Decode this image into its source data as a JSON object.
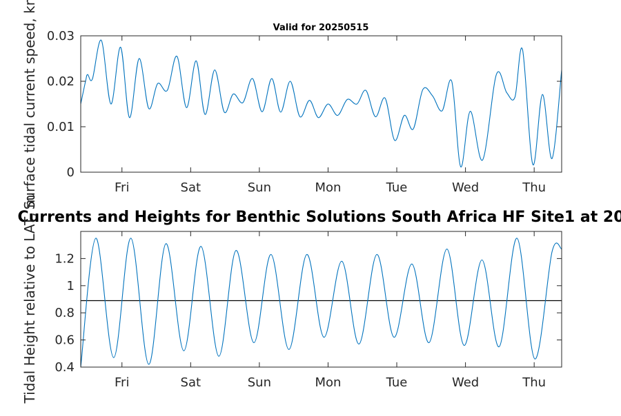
{
  "figure": {
    "top_title": "Valid for 20250515",
    "main_title": "Currents and Heights for Benthic Solutions South Africa HF Site1 at 20"
  },
  "chart_data": [
    {
      "type": "line",
      "ylabel": "Surface tidal current speed, kn",
      "ylim": [
        0,
        0.03
      ],
      "yticks": [
        0,
        0.01,
        0.02,
        0.03
      ],
      "ytick_labels": [
        "0",
        "0.01",
        "0.02",
        "0.03"
      ],
      "xlim": [
        0,
        7
      ],
      "xtick_positions": [
        0.6,
        1.6,
        2.6,
        3.6,
        4.6,
        5.6,
        6.6
      ],
      "xtick_labels": [
        "Fri",
        "Sat",
        "Sun",
        "Mon",
        "Tue",
        "Wed",
        "Thu"
      ],
      "grid": false,
      "series": [
        {
          "color": "#0072BD",
          "x": [
            0,
            0.07,
            0.1,
            0.17,
            0.3,
            0.44,
            0.58,
            0.71,
            0.85,
            0.99,
            1.12,
            1.26,
            1.4,
            1.54,
            1.68,
            1.81,
            1.95,
            2.09,
            2.22,
            2.36,
            2.5,
            2.64,
            2.78,
            2.91,
            3.05,
            3.19,
            3.33,
            3.46,
            3.6,
            3.74,
            3.88,
            4.02,
            4.15,
            4.29,
            4.43,
            4.57,
            4.71,
            4.84,
            4.98,
            5.12,
            5.26,
            5.4,
            5.53,
            5.67,
            5.85,
            6.05,
            6.2,
            6.32,
            6.43,
            6.58,
            6.72,
            6.86,
            7.0
          ],
          "y": [
            0.015,
            0.02,
            0.0215,
            0.0205,
            0.029,
            0.015,
            0.0275,
            0.012,
            0.025,
            0.014,
            0.0195,
            0.018,
            0.0255,
            0.0142,
            0.0245,
            0.0127,
            0.0225,
            0.0132,
            0.0172,
            0.0153,
            0.0206,
            0.0133,
            0.0206,
            0.0132,
            0.02,
            0.0122,
            0.0158,
            0.012,
            0.015,
            0.0125,
            0.016,
            0.015,
            0.018,
            0.0122,
            0.0163,
            0.007,
            0.0125,
            0.0095,
            0.0182,
            0.0168,
            0.0135,
            0.02,
            0.0012,
            0.0134,
            0.0027,
            0.0215,
            0.0175,
            0.0165,
            0.027,
            0.0017,
            0.0171,
            0.003,
            0.0225
          ]
        }
      ]
    },
    {
      "type": "line",
      "ylabel": "Tidal Height relative to LAT, m",
      "ylim": [
        0.4,
        1.4
      ],
      "yticks": [
        0.4,
        0.6,
        0.8,
        1,
        1.2
      ],
      "ytick_labels": [
        "0.4",
        "0.6",
        "0.8",
        "1",
        "1.2"
      ],
      "xlim": [
        0,
        7
      ],
      "xtick_positions": [
        0.6,
        1.6,
        2.6,
        3.6,
        4.6,
        5.6,
        6.6
      ],
      "xtick_labels": [
        "Fri",
        "Sat",
        "Sun",
        "Mon",
        "Tue",
        "Wed",
        "Thu"
      ],
      "grid": false,
      "reference_line": {
        "y": 0.89,
        "color": "#000000"
      },
      "series": [
        {
          "color": "#0072BD",
          "x": [
            0,
            0.22,
            0.48,
            0.73,
            0.99,
            1.24,
            1.5,
            1.75,
            2.01,
            2.26,
            2.52,
            2.77,
            3.03,
            3.29,
            3.54,
            3.8,
            4.05,
            4.31,
            4.56,
            4.82,
            5.07,
            5.33,
            5.58,
            5.84,
            6.09,
            6.35,
            6.61,
            6.86,
            7.0
          ],
          "y": [
            0.4,
            1.35,
            0.47,
            1.35,
            0.42,
            1.31,
            0.52,
            1.29,
            0.48,
            1.26,
            0.58,
            1.23,
            0.53,
            1.23,
            0.62,
            1.18,
            0.57,
            1.23,
            0.62,
            1.16,
            0.58,
            1.27,
            0.56,
            1.19,
            0.55,
            1.35,
            0.46,
            1.25,
            1.27
          ]
        }
      ]
    }
  ]
}
